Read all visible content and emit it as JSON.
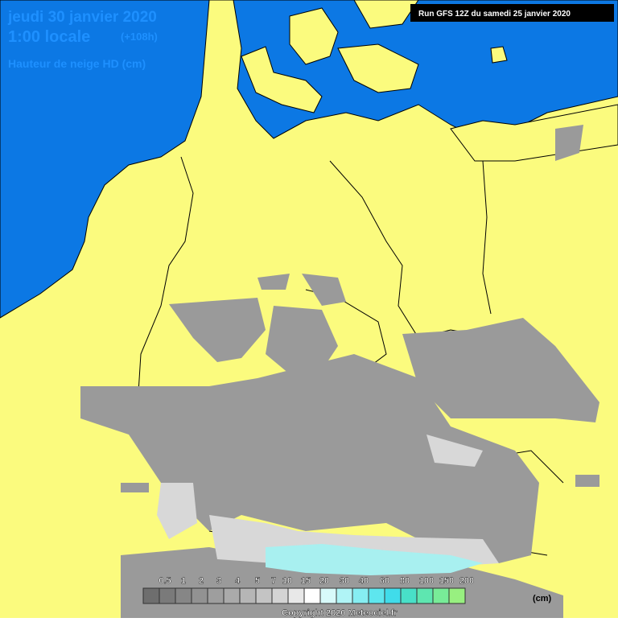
{
  "header": {
    "date": "jeudi 30 janvier 2020",
    "time": "1:00 locale",
    "offset": "(+108h)",
    "variable": "Hauteur de neige HD (cm)",
    "run": "Run GFS 12Z du samedi 25 janvier 2020"
  },
  "legend": {
    "labels": [
      "0.5",
      "1",
      "2",
      "3",
      "4",
      "5",
      "7",
      "10",
      "15",
      "20",
      "30",
      "40",
      "60",
      "80",
      "100",
      "150",
      "200"
    ],
    "unit": "(cm)"
  },
  "footer": {
    "copyright": "Copyright 2020 Meteociel.fr"
  }
}
